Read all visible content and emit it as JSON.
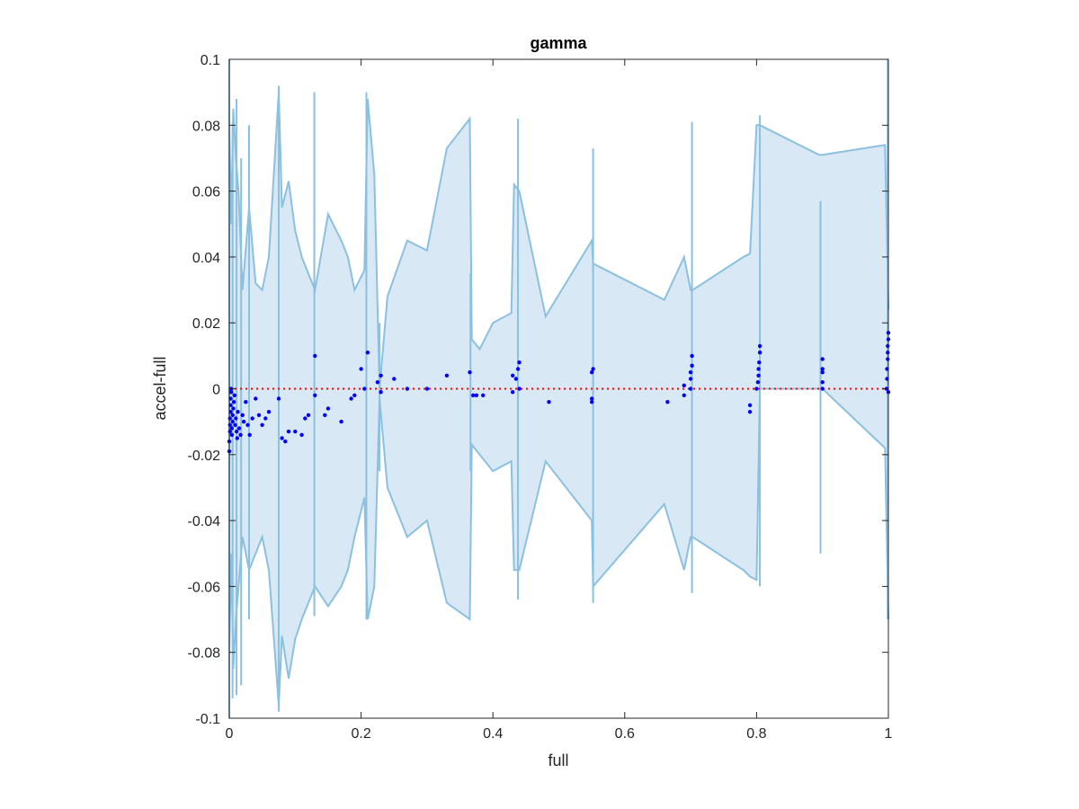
{
  "chart_data": {
    "type": "scatter",
    "title": "gamma",
    "xlabel": "full",
    "ylabel": "accel-full",
    "xlim": [
      0,
      1
    ],
    "ylim": [
      -0.1,
      0.1
    ],
    "x_ticks": [
      0,
      0.2,
      0.4,
      0.6,
      0.8,
      1
    ],
    "x_tick_labels": [
      "0",
      "0.2",
      "0.4",
      "0.6",
      "0.8",
      "1"
    ],
    "y_ticks": [
      -0.1,
      -0.08,
      -0.06,
      -0.04,
      -0.02,
      0,
      0.02,
      0.04,
      0.06,
      0.08,
      0.1
    ],
    "y_tick_labels": [
      "-0.1",
      "-0.08",
      "-0.06",
      "-0.04",
      "-0.02",
      "0",
      "0.02",
      "0.04",
      "0.06",
      "0.08",
      "0.1"
    ],
    "grid": false,
    "reference_line": {
      "y": 0,
      "color": "#ff0000",
      "style": "dotted"
    },
    "band": {
      "fill_color": "#d9e8f5",
      "edge_color": "#8bc0e0",
      "x": [
        0,
        0.003,
        0.006,
        0.01,
        0.014,
        0.02,
        0.03,
        0.04,
        0.05,
        0.06,
        0.075,
        0.08,
        0.09,
        0.1,
        0.11,
        0.13,
        0.15,
        0.17,
        0.18,
        0.19,
        0.205,
        0.21,
        0.22,
        0.228,
        0.24,
        0.27,
        0.3,
        0.33,
        0.365,
        0.368,
        0.38,
        0.4,
        0.428,
        0.432,
        0.44,
        0.48,
        0.55,
        0.552,
        0.66,
        0.69,
        0.7,
        0.703,
        0.78,
        0.79,
        0.8,
        0.805,
        0.895,
        0.9,
        0.995,
        1.0
      ],
      "upper": [
        0.08,
        0.05,
        0.085,
        0.07,
        0.06,
        0.03,
        0.055,
        0.032,
        0.03,
        0.04,
        0.09,
        0.055,
        0.063,
        0.048,
        0.04,
        0.03,
        0.053,
        0.045,
        0.04,
        0.03,
        0.036,
        0.088,
        0.065,
        0.0,
        0.028,
        0.045,
        0.042,
        0.073,
        0.082,
        0.015,
        0.012,
        0.02,
        0.023,
        0.062,
        0.06,
        0.022,
        0.045,
        0.038,
        0.027,
        0.04,
        0.03,
        0.03,
        0.04,
        0.041,
        0.08,
        0.08,
        0.071,
        0.071,
        0.074,
        0.024
      ],
      "lower": [
        -0.08,
        -0.05,
        -0.085,
        -0.07,
        -0.06,
        -0.045,
        -0.055,
        -0.05,
        -0.045,
        -0.055,
        -0.096,
        -0.075,
        -0.088,
        -0.076,
        -0.07,
        -0.06,
        -0.066,
        -0.06,
        -0.055,
        -0.045,
        -0.033,
        -0.07,
        -0.06,
        -0.003,
        -0.03,
        -0.045,
        -0.04,
        -0.065,
        -0.07,
        -0.017,
        -0.02,
        -0.025,
        -0.022,
        -0.055,
        -0.055,
        -0.022,
        -0.04,
        -0.06,
        -0.035,
        -0.055,
        -0.045,
        -0.045,
        -0.055,
        -0.057,
        -0.058,
        -0.0,
        -0.0,
        -0.0,
        -0.018,
        -0.07
      ]
    },
    "spikes": [
      {
        "x": 0.0,
        "y1": -0.1,
        "y2": 0.1
      },
      {
        "x": 0.005,
        "y1": -0.094,
        "y2": 0.081
      },
      {
        "x": 0.011,
        "y1": -0.093,
        "y2": 0.088
      },
      {
        "x": 0.018,
        "y1": -0.09,
        "y2": 0.07
      },
      {
        "x": 0.03,
        "y1": -0.07,
        "y2": 0.08
      },
      {
        "x": 0.075,
        "y1": -0.098,
        "y2": 0.092
      },
      {
        "x": 0.129,
        "y1": -0.069,
        "y2": 0.09
      },
      {
        "x": 0.208,
        "y1": -0.07,
        "y2": 0.09
      },
      {
        "x": 0.228,
        "y1": -0.025,
        "y2": 0.02
      },
      {
        "x": 0.366,
        "y1": -0.025,
        "y2": 0.035
      },
      {
        "x": 0.438,
        "y1": -0.064,
        "y2": 0.082
      },
      {
        "x": 0.552,
        "y1": -0.065,
        "y2": 0.073
      },
      {
        "x": 0.702,
        "y1": -0.062,
        "y2": 0.081
      },
      {
        "x": 0.805,
        "y1": -0.06,
        "y2": 0.083
      },
      {
        "x": 0.897,
        "y1": -0.05,
        "y2": 0.057
      },
      {
        "x": 0.999,
        "y1": -0.07,
        "y2": 0.1
      }
    ],
    "series": [
      {
        "color": "#0000ff",
        "points": [
          [
            0.0,
            -0.019
          ],
          [
            0.0,
            -0.016
          ],
          [
            0.001,
            -0.013
          ],
          [
            0.001,
            -0.011
          ],
          [
            0.001,
            -0.009
          ],
          [
            0.002,
            -0.007
          ],
          [
            0.002,
            -0.005
          ],
          [
            0.002,
            -0.003
          ],
          [
            0.003,
            -0.001
          ],
          [
            0.003,
            0.0
          ],
          [
            0.004,
            -0.014
          ],
          [
            0.004,
            -0.012
          ],
          [
            0.005,
            -0.01
          ],
          [
            0.005,
            -0.008
          ],
          [
            0.006,
            -0.006
          ],
          [
            0.007,
            -0.004
          ],
          [
            0.008,
            -0.002
          ],
          [
            0.009,
            -0.011
          ],
          [
            0.01,
            -0.009
          ],
          [
            0.011,
            -0.013
          ],
          [
            0.012,
            -0.015
          ],
          [
            0.013,
            -0.007
          ],
          [
            0.015,
            -0.012
          ],
          [
            0.017,
            -0.014
          ],
          [
            0.02,
            -0.008
          ],
          [
            0.022,
            -0.01
          ],
          [
            0.025,
            -0.004
          ],
          [
            0.028,
            -0.011
          ],
          [
            0.031,
            -0.014
          ],
          [
            0.035,
            -0.009
          ],
          [
            0.04,
            -0.003
          ],
          [
            0.045,
            -0.008
          ],
          [
            0.05,
            -0.011
          ],
          [
            0.055,
            -0.009
          ],
          [
            0.06,
            -0.007
          ],
          [
            0.075,
            -0.003
          ],
          [
            0.08,
            -0.015
          ],
          [
            0.085,
            -0.016
          ],
          [
            0.09,
            -0.013
          ],
          [
            0.1,
            -0.013
          ],
          [
            0.11,
            -0.014
          ],
          [
            0.115,
            -0.009
          ],
          [
            0.12,
            -0.008
          ],
          [
            0.13,
            -0.002
          ],
          [
            0.13,
            0.01
          ],
          [
            0.145,
            -0.008
          ],
          [
            0.15,
            -0.006
          ],
          [
            0.17,
            -0.01
          ],
          [
            0.185,
            -0.003
          ],
          [
            0.19,
            -0.002
          ],
          [
            0.2,
            0.006
          ],
          [
            0.205,
            0.0
          ],
          [
            0.21,
            0.011
          ],
          [
            0.225,
            0.002
          ],
          [
            0.23,
            -0.001
          ],
          [
            0.23,
            0.004
          ],
          [
            0.25,
            0.003
          ],
          [
            0.27,
            0.0
          ],
          [
            0.3,
            0.0
          ],
          [
            0.33,
            0.004
          ],
          [
            0.365,
            0.005
          ],
          [
            0.37,
            -0.002
          ],
          [
            0.375,
            -0.002
          ],
          [
            0.385,
            -0.002
          ],
          [
            0.43,
            -0.001
          ],
          [
            0.43,
            0.004
          ],
          [
            0.435,
            0.003
          ],
          [
            0.438,
            0.006
          ],
          [
            0.44,
            0.008
          ],
          [
            0.44,
            0.0
          ],
          [
            0.485,
            -0.004
          ],
          [
            0.55,
            0.005
          ],
          [
            0.552,
            0.006
          ],
          [
            0.55,
            -0.004
          ],
          [
            0.55,
            -0.003
          ],
          [
            0.665,
            -0.004
          ],
          [
            0.69,
            -0.002
          ],
          [
            0.69,
            0.001
          ],
          [
            0.7,
            0.003
          ],
          [
            0.7,
            0.005
          ],
          [
            0.702,
            0.007
          ],
          [
            0.702,
            0.01
          ],
          [
            0.7,
            0.0
          ],
          [
            0.79,
            -0.005
          ],
          [
            0.79,
            -0.007
          ],
          [
            0.8,
            0.0
          ],
          [
            0.802,
            0.002
          ],
          [
            0.803,
            0.004
          ],
          [
            0.803,
            0.006
          ],
          [
            0.804,
            0.008
          ],
          [
            0.805,
            0.011
          ],
          [
            0.805,
            0.013
          ],
          [
            0.9,
            0.0
          ],
          [
            0.9,
            0.002
          ],
          [
            0.9,
            0.005
          ],
          [
            0.9,
            0.006
          ],
          [
            0.9,
            0.009
          ],
          [
            0.997,
            0.0
          ],
          [
            0.998,
            0.003
          ],
          [
            0.998,
            0.006
          ],
          [
            0.999,
            0.009
          ],
          [
            0.999,
            0.011
          ],
          [
            0.999,
            0.013
          ],
          [
            1.0,
            0.015
          ],
          [
            1.0,
            0.017
          ],
          [
            1.0,
            -0.001
          ]
        ]
      }
    ]
  }
}
